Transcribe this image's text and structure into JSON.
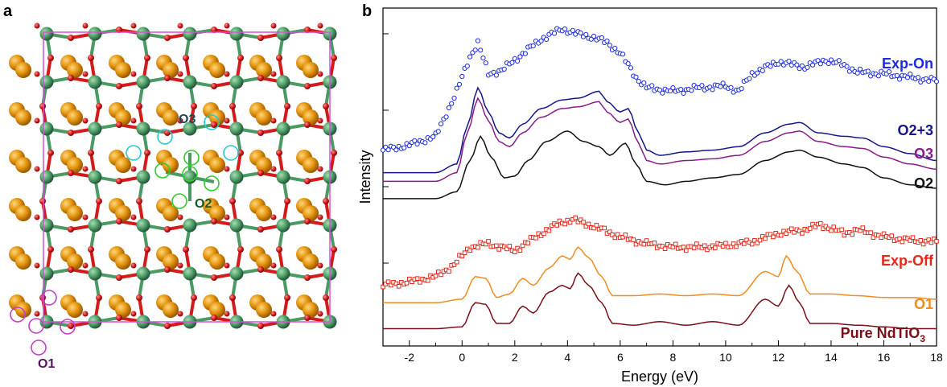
{
  "panel_a": {
    "label": "a",
    "site_labels": [
      "O3",
      "O2",
      "O1"
    ],
    "colors": {
      "nd": "#e3940f",
      "ti": "#4a9a63",
      "o": "#d41a1a",
      "cell": "#d64fd6",
      "o1_ring": "#c83cc8",
      "o2_ring": "#2ecc2e",
      "o3_ring": "#28c8d0",
      "o1_text": "#5a1060",
      "o2_text": "#145a1e",
      "o3_text": "#1a4a55"
    }
  },
  "panel_b": {
    "label": "b",
    "chart_data": {
      "type": "line",
      "xlabel": "Energy (eV)",
      "ylabel": "Intensity",
      "xlim": [
        -3,
        18
      ],
      "xticks": [
        "-2",
        "0",
        "2",
        "4",
        "6",
        "8",
        "10",
        "12",
        "14",
        "16",
        "18"
      ],
      "series": [
        {
          "name": "Exp-On",
          "style": "circle-markers",
          "color": "#1c2be0",
          "points": [
            [
              -3,
              0.28
            ],
            [
              -2,
              0.31
            ],
            [
              -1,
              0.36
            ],
            [
              -0.2,
              0.62
            ],
            [
              0.3,
              0.82
            ],
            [
              0.6,
              0.9
            ],
            [
              1,
              0.72
            ],
            [
              1.5,
              0.74
            ],
            [
              2,
              0.8
            ],
            [
              3,
              0.92
            ],
            [
              3.8,
              0.98
            ],
            [
              4.4,
              0.95
            ],
            [
              5,
              0.93
            ],
            [
              5.5,
              0.9
            ],
            [
              6,
              0.84
            ],
            [
              6.6,
              0.7
            ],
            [
              7,
              0.64
            ],
            [
              8,
              0.62
            ],
            [
              9,
              0.64
            ],
            [
              10,
              0.65
            ],
            [
              10.5,
              0.62
            ],
            [
              11,
              0.72
            ],
            [
              12,
              0.79
            ],
            [
              13,
              0.76
            ],
            [
              13.8,
              0.8
            ],
            [
              14.5,
              0.77
            ],
            [
              15,
              0.73
            ],
            [
              16,
              0.72
            ],
            [
              17,
              0.7
            ],
            [
              18,
              0.68
            ]
          ]
        },
        {
          "name": "O2+3",
          "style": "line",
          "color": "#16168a",
          "points": [
            [
              -3,
              0.15
            ],
            [
              -1,
              0.15
            ],
            [
              -0.2,
              0.2
            ],
            [
              0.2,
              0.42
            ],
            [
              0.6,
              0.64
            ],
            [
              1,
              0.5
            ],
            [
              1.4,
              0.38
            ],
            [
              1.8,
              0.35
            ],
            [
              2.3,
              0.43
            ],
            [
              3,
              0.52
            ],
            [
              3.8,
              0.57
            ],
            [
              4.4,
              0.58
            ],
            [
              5.2,
              0.62
            ],
            [
              5.5,
              0.56
            ],
            [
              6,
              0.5
            ],
            [
              6.3,
              0.52
            ],
            [
              6.7,
              0.38
            ],
            [
              7,
              0.28
            ],
            [
              7.5,
              0.25
            ],
            [
              8.5,
              0.27
            ],
            [
              9.5,
              0.28
            ],
            [
              10.5,
              0.3
            ],
            [
              11.5,
              0.38
            ],
            [
              12.4,
              0.43
            ],
            [
              12.8,
              0.44
            ],
            [
              13.5,
              0.38
            ],
            [
              14.5,
              0.36
            ],
            [
              15.2,
              0.35
            ],
            [
              16,
              0.3
            ],
            [
              17,
              0.26
            ],
            [
              18,
              0.22
            ]
          ]
        },
        {
          "name": "O3",
          "style": "line",
          "color": "#8a1a8a",
          "points": [
            [
              -3,
              0.1
            ],
            [
              -1,
              0.1
            ],
            [
              -0.2,
              0.15
            ],
            [
              0.2,
              0.38
            ],
            [
              0.6,
              0.58
            ],
            [
              1,
              0.45
            ],
            [
              1.4,
              0.33
            ],
            [
              1.8,
              0.3
            ],
            [
              2.3,
              0.38
            ],
            [
              3,
              0.47
            ],
            [
              3.8,
              0.52
            ],
            [
              4.4,
              0.53
            ],
            [
              5.2,
              0.56
            ],
            [
              5.5,
              0.5
            ],
            [
              6,
              0.44
            ],
            [
              6.3,
              0.46
            ],
            [
              6.7,
              0.32
            ],
            [
              7,
              0.22
            ],
            [
              7.5,
              0.2
            ],
            [
              8.5,
              0.22
            ],
            [
              9.5,
              0.23
            ],
            [
              10.5,
              0.25
            ],
            [
              11.5,
              0.33
            ],
            [
              12.4,
              0.38
            ],
            [
              12.8,
              0.39
            ],
            [
              13.5,
              0.33
            ],
            [
              14.5,
              0.3
            ],
            [
              15.2,
              0.29
            ],
            [
              16,
              0.24
            ],
            [
              17,
              0.2
            ],
            [
              18,
              0.17
            ]
          ]
        },
        {
          "name": "O2",
          "style": "line",
          "color": "#111111",
          "points": [
            [
              -3,
              0.0
            ],
            [
              -1,
              0.0
            ],
            [
              -0.2,
              0.04
            ],
            [
              0.3,
              0.22
            ],
            [
              0.7,
              0.36
            ],
            [
              1.1,
              0.24
            ],
            [
              1.6,
              0.12
            ],
            [
              2,
              0.13
            ],
            [
              2.5,
              0.22
            ],
            [
              3.2,
              0.33
            ],
            [
              4,
              0.39
            ],
            [
              4.6,
              0.33
            ],
            [
              5.2,
              0.3
            ],
            [
              5.6,
              0.25
            ],
            [
              6.2,
              0.32
            ],
            [
              6.6,
              0.2
            ],
            [
              7,
              0.1
            ],
            [
              7.7,
              0.08
            ],
            [
              8.5,
              0.1
            ],
            [
              9.5,
              0.12
            ],
            [
              10.5,
              0.14
            ],
            [
              11.5,
              0.22
            ],
            [
              12.4,
              0.27
            ],
            [
              12.8,
              0.28
            ],
            [
              13.5,
              0.24
            ],
            [
              14.5,
              0.2
            ],
            [
              15.2,
              0.18
            ],
            [
              16,
              0.12
            ],
            [
              17,
              0.08
            ],
            [
              18,
              0.06
            ]
          ]
        },
        {
          "name": "Exp-Off",
          "style": "square-markers",
          "color": "#e8261a",
          "points": [
            [
              -3,
              -0.5
            ],
            [
              -2,
              -0.48
            ],
            [
              -1,
              -0.45
            ],
            [
              -0.3,
              -0.38
            ],
            [
              0.3,
              -0.28
            ],
            [
              1,
              -0.26
            ],
            [
              2,
              -0.3
            ],
            [
              3,
              -0.2
            ],
            [
              3.7,
              -0.14
            ],
            [
              4.2,
              -0.12
            ],
            [
              5,
              -0.16
            ],
            [
              6,
              -0.22
            ],
            [
              7,
              -0.26
            ],
            [
              8,
              -0.28
            ],
            [
              9,
              -0.28
            ],
            [
              10,
              -0.27
            ],
            [
              11,
              -0.25
            ],
            [
              12,
              -0.2
            ],
            [
              13,
              -0.18
            ],
            [
              13.6,
              -0.15
            ],
            [
              14.5,
              -0.2
            ],
            [
              15,
              -0.18
            ],
            [
              16,
              -0.22
            ],
            [
              17,
              -0.24
            ],
            [
              18,
              -0.25
            ]
          ]
        },
        {
          "name": "O1",
          "style": "line",
          "color": "#f08c1e",
          "points": [
            [
              -3,
              -0.6
            ],
            [
              -1,
              -0.6
            ],
            [
              0,
              -0.58
            ],
            [
              0.5,
              -0.45
            ],
            [
              0.9,
              -0.46
            ],
            [
              1.3,
              -0.57
            ],
            [
              1.8,
              -0.55
            ],
            [
              2.3,
              -0.46
            ],
            [
              2.7,
              -0.5
            ],
            [
              3.3,
              -0.4
            ],
            [
              3.8,
              -0.33
            ],
            [
              4.1,
              -0.35
            ],
            [
              4.4,
              -0.28
            ],
            [
              4.8,
              -0.34
            ],
            [
              5.3,
              -0.45
            ],
            [
              5.7,
              -0.56
            ],
            [
              6.5,
              -0.56
            ],
            [
              7.5,
              -0.55
            ],
            [
              8.5,
              -0.56
            ],
            [
              9.5,
              -0.55
            ],
            [
              10.5,
              -0.56
            ],
            [
              11.5,
              -0.42
            ],
            [
              12,
              -0.45
            ],
            [
              12.3,
              -0.33
            ],
            [
              12.7,
              -0.42
            ],
            [
              13.2,
              -0.55
            ],
            [
              14,
              -0.55
            ],
            [
              15,
              -0.56
            ],
            [
              16,
              -0.57
            ],
            [
              17,
              -0.57
            ],
            [
              18,
              -0.58
            ]
          ]
        },
        {
          "name": "Pure NdTiO3",
          "style": "line",
          "color": "#7a0f18",
          "points": [
            [
              -3,
              -0.75
            ],
            [
              -1,
              -0.75
            ],
            [
              0,
              -0.74
            ],
            [
              0.5,
              -0.6
            ],
            [
              0.9,
              -0.61
            ],
            [
              1.3,
              -0.72
            ],
            [
              1.8,
              -0.72
            ],
            [
              2.3,
              -0.62
            ],
            [
              2.7,
              -0.66
            ],
            [
              3.3,
              -0.54
            ],
            [
              3.8,
              -0.5
            ],
            [
              4.1,
              -0.52
            ],
            [
              4.4,
              -0.43
            ],
            [
              4.8,
              -0.5
            ],
            [
              5.3,
              -0.6
            ],
            [
              5.7,
              -0.72
            ],
            [
              6.5,
              -0.73
            ],
            [
              7.5,
              -0.71
            ],
            [
              8.5,
              -0.73
            ],
            [
              9.5,
              -0.71
            ],
            [
              10.5,
              -0.73
            ],
            [
              11.5,
              -0.58
            ],
            [
              12,
              -0.62
            ],
            [
              12.4,
              -0.5
            ],
            [
              12.8,
              -0.6
            ],
            [
              13.2,
              -0.72
            ],
            [
              14,
              -0.72
            ],
            [
              15,
              -0.73
            ],
            [
              16,
              -0.74
            ],
            [
              17,
              -0.75
            ],
            [
              18,
              -0.75
            ]
          ]
        }
      ],
      "legend": [
        {
          "text": "Exp-On",
          "color": "#1c2be0"
        },
        {
          "text": "O2+3",
          "color": "#16168a"
        },
        {
          "text": "O3",
          "color": "#8a1a8a"
        },
        {
          "text": "O2",
          "color": "#111111"
        },
        {
          "text": "Exp-Off",
          "color": "#e8261a"
        },
        {
          "text": "O1",
          "color": "#f08c1e"
        },
        {
          "text": "Pure NdTiO",
          "sub": "3",
          "color": "#7a0f18"
        }
      ]
    }
  }
}
